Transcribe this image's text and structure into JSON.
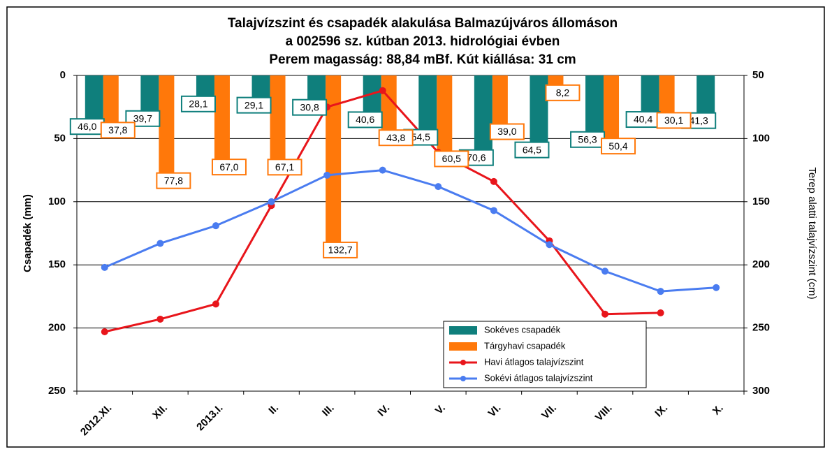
{
  "chart_data": {
    "type": "bar",
    "title": "Talajvízszint és csapadék alakulása Balmazújváros állomáson",
    "subtitle": "a 002596 sz. kútban 2013. hidrológiai évben",
    "subtitle2": "Perem magasság: 88,84 mBf.  Kút kiállása: 31 cm",
    "ylabel": "Csapadék (mm)",
    "y2label": "Terep alatti talajvízszint (cm)",
    "categories": [
      "2012.XI.",
      "XII.",
      "2013.I.",
      "II.",
      "III.",
      "IV.",
      "V.",
      "VI.",
      "VII.",
      "VIII.",
      "IX.",
      "X."
    ],
    "ylim": [
      0,
      250
    ],
    "yticks": [
      0,
      50,
      100,
      150,
      200,
      250
    ],
    "yreversed": true,
    "y2lim": [
      50,
      300
    ],
    "y2ticks": [
      50,
      100,
      150,
      200,
      250,
      300
    ],
    "y2reversed": true,
    "grid": true,
    "series": [
      {
        "name": "Sokéves csapadék",
        "type": "bar",
        "color": "#0f7f7c",
        "values": [
          46.0,
          39.7,
          28.1,
          29.1,
          30.8,
          40.6,
          54.5,
          70.6,
          64.5,
          56.3,
          40.4,
          41.3
        ],
        "value_labels": [
          "46,0",
          "39,7",
          "28,1",
          "29,1",
          "30,8",
          "40,6",
          "54,5",
          "70,6",
          "64,5",
          "56,3",
          "40,4",
          "41,3"
        ]
      },
      {
        "name": "Tárgyhavi csapadék",
        "type": "bar",
        "color": "#ff780a",
        "values": [
          37.8,
          77.8,
          67.0,
          67.1,
          132.7,
          43.8,
          60.5,
          39.0,
          8.2,
          50.4,
          30.1,
          null
        ],
        "value_labels": [
          "37,8",
          "77,8",
          "67,0",
          "67,1",
          "132,7",
          "43,8",
          "60,5",
          "39,0",
          "8,2",
          "50,4",
          "30,1",
          null
        ]
      },
      {
        "name": "Havi átlagos talajvízszint",
        "type": "line",
        "axis": "y2",
        "color": "#e8151b",
        "values": [
          253,
          243,
          231,
          153,
          75,
          62,
          111,
          134,
          181,
          239,
          238,
          null
        ]
      },
      {
        "name": "Sokévi átlagos talajvízszint",
        "type": "line",
        "axis": "y2",
        "color": "#4a7cf0",
        "values": [
          202,
          183,
          169,
          150,
          129,
          125,
          138,
          157,
          184,
          205,
          221,
          218
        ]
      }
    ]
  }
}
